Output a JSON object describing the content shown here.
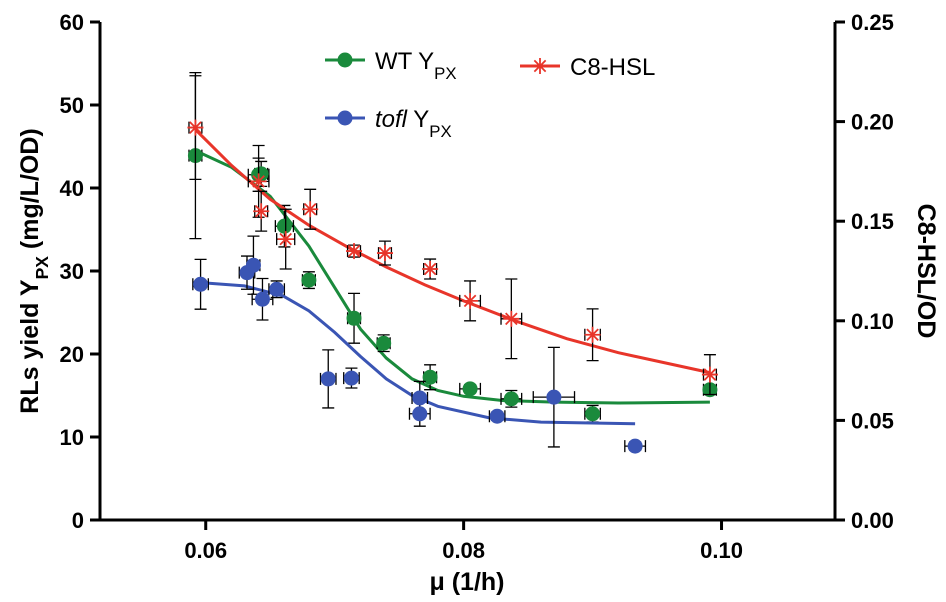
{
  "chart_data": {
    "type": "scatter",
    "x_label": "μ (1/h)",
    "y_label_parts": [
      {
        "text": "RLs yield Y"
      },
      {
        "text": "PX",
        "sub": true
      },
      {
        "text": " (mg/L/OD)"
      }
    ],
    "y2_label": "C8-HSL/OD",
    "xlim": [
      0.0518,
      0.1088
    ],
    "xticks": [
      0.06,
      0.08,
      {
        "value": 0.1,
        "label": "0.10"
      }
    ],
    "ylim": [
      0,
      60
    ],
    "yticks": [
      0,
      10,
      20,
      30,
      40,
      50,
      60
    ],
    "y2lim": [
      0,
      0.25
    ],
    "y2ticks": [
      {
        "value": 0,
        "label": "0.00"
      },
      0.05,
      {
        "value": 0.1,
        "label": "0.10"
      },
      0.15,
      {
        "value": 0.2,
        "label": "0.20"
      },
      0.25
    ],
    "series": [
      {
        "name_parts": [
          {
            "text": "WT Y"
          },
          {
            "text": "PX",
            "sub": true
          }
        ],
        "color": "#1a8a3c",
        "marker": "circle",
        "x": [
          0.0592,
          0.0641,
          0.0643,
          0.0661,
          0.068,
          0.0715,
          0.0738,
          0.0774,
          0.0805,
          0.0837,
          0.09,
          0.0991
        ],
        "values": [
          43.9,
          41.6,
          41.7,
          35.4,
          28.9,
          24.3,
          21.3,
          17.2,
          15.8,
          14.6,
          12.8,
          15.7
        ],
        "yerr": [
          10,
          2,
          1.5,
          2.5,
          1,
          3,
          1,
          1.5,
          0.5,
          1,
          1,
          0.5
        ],
        "xerr": [
          0.0005,
          0.0008,
          0.0005,
          0.0007,
          0.0005,
          0.0005,
          0.0005,
          0.0005,
          0.0008,
          0.0008,
          0.0006,
          0.0005
        ],
        "fit_x": [
          0.0592,
          0.062,
          0.065,
          0.068,
          0.07,
          0.072,
          0.074,
          0.076,
          0.078,
          0.08,
          0.083,
          0.087,
          0.092,
          0.0991
        ],
        "fit_y": [
          44.5,
          42.5,
          39,
          33,
          28,
          23,
          19.5,
          17,
          15.6,
          14.9,
          14.4,
          14.2,
          14.1,
          14.2
        ]
      },
      {
        "name_parts": [
          {
            "text": "tofl",
            "italic": true
          },
          {
            "text": " Y"
          },
          {
            "text": "PX",
            "sub": true
          }
        ],
        "color": "#3a55b4",
        "marker": "circle",
        "x": [
          0.0596,
          0.0632,
          0.0637,
          0.0644,
          0.0655,
          0.0695,
          0.0713,
          0.0766,
          0.0766,
          0.0826,
          0.087,
          0.0933
        ],
        "values": [
          28.4,
          29.8,
          30.7,
          26.6,
          27.8,
          17,
          17.1,
          14.7,
          12.8,
          12.5,
          14.8,
          8.9
        ],
        "yerr": [
          3,
          2,
          3.5,
          2.5,
          1,
          3.5,
          1.2,
          2,
          1.5,
          0.5,
          6,
          0.5
        ],
        "xerr": [
          0.0006,
          0.0006,
          0.0005,
          0.0008,
          0.0006,
          0.0006,
          0.0006,
          0.0006,
          0.0008,
          0.0006,
          0.0016,
          0.0008
        ],
        "fit_x": [
          0.0596,
          0.063,
          0.066,
          0.068,
          0.07,
          0.072,
          0.074,
          0.076,
          0.078,
          0.082,
          0.086,
          0.0933
        ],
        "fit_y": [
          28.6,
          28.2,
          27,
          25.2,
          22.6,
          19.7,
          17,
          15,
          13.7,
          12.3,
          11.8,
          11.6
        ]
      },
      {
        "name_parts": [
          {
            "text": "C8-HSL"
          }
        ],
        "color": "#e8352a",
        "marker": "star",
        "axis": "y2",
        "x": [
          0.0592,
          0.0641,
          0.0643,
          0.0662,
          0.0681,
          0.0715,
          0.0739,
          0.0774,
          0.0805,
          0.0837,
          0.09,
          0.0991
        ],
        "values": [
          0.197,
          0.17,
          0.155,
          0.141,
          0.156,
          0.135,
          0.134,
          0.126,
          0.11,
          0.101,
          0.093,
          0.073
        ],
        "yerr": [
          0.026,
          0.018,
          0.01,
          0.015,
          0.01,
          0.003,
          0.006,
          0.005,
          0.01,
          0.02,
          0.013,
          0.01
        ],
        "xerr": [
          0.0005,
          0.0008,
          0.0005,
          0.0007,
          0.0005,
          0.0005,
          0.0005,
          0.0005,
          0.0008,
          0.0008,
          0.0006,
          0.0005
        ],
        "fit_x": [
          0.0592,
          0.062,
          0.065,
          0.068,
          0.071,
          0.074,
          0.077,
          0.08,
          0.084,
          0.088,
          0.092,
          0.0991
        ],
        "fit_y": [
          0.196,
          0.178,
          0.161,
          0.148,
          0.137,
          0.127,
          0.118,
          0.11,
          0.1,
          0.091,
          0.084,
          0.074
        ]
      }
    ]
  }
}
